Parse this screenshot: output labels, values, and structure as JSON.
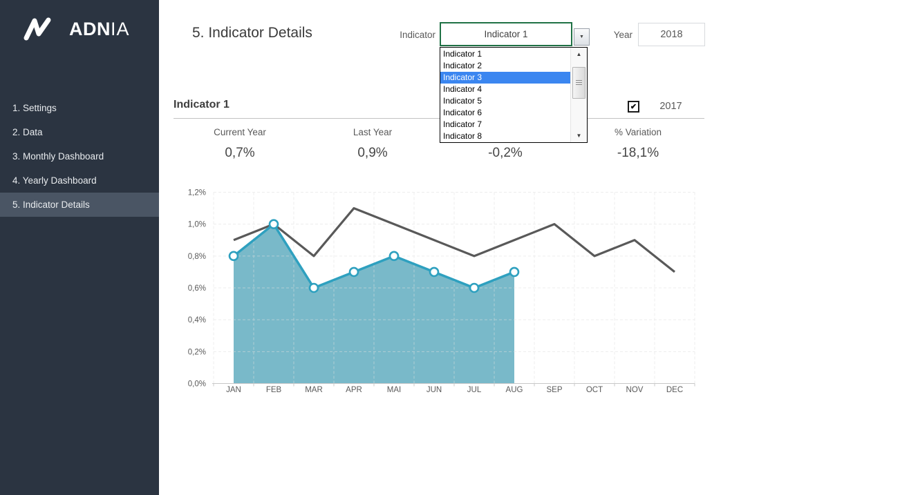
{
  "sidebar": {
    "logo": {
      "brand_bold": "ADN",
      "brand_light": "IA"
    },
    "items": [
      {
        "label": "1. Settings",
        "active": false
      },
      {
        "label": "2. Data",
        "active": false
      },
      {
        "label": "3. Monthly Dashboard",
        "active": false
      },
      {
        "label": "4. Yearly Dashboard",
        "active": false
      },
      {
        "label": "5. Indicator Details",
        "active": true
      }
    ],
    "colors": {
      "background": "#2b3441",
      "active_item": "#4a5564",
      "text": "#e9ecef"
    }
  },
  "header": {
    "title": "5. Indicator Details",
    "indicator_label": "Indicator",
    "indicator_value": "Indicator 1",
    "year_label": "Year",
    "year_value": "2018"
  },
  "dropdown": {
    "options": [
      "Indicator 1",
      "Indicator 2",
      "Indicator 3",
      "Indicator 4",
      "Indicator 5",
      "Indicator 6",
      "Indicator 7",
      "Indicator 8"
    ],
    "highlighted_index": 2,
    "highlight_color": "#3b86f0"
  },
  "section": {
    "title": "Indicator 1",
    "compare_checkbox_checked": true,
    "compare_year": "2017"
  },
  "stats": [
    {
      "label": "Current Year",
      "value": "0,7%"
    },
    {
      "label": "Last Year",
      "value": "0,9%"
    },
    {
      "label": "",
      "value": "-0,2%"
    },
    {
      "label": "% Variation",
      "value": "-18,1%"
    }
  ],
  "chart_data": {
    "type": "area",
    "categories": [
      "JAN",
      "FEB",
      "MAR",
      "APR",
      "MAI",
      "JUN",
      "JUL",
      "AUG",
      "SEP",
      "OCT",
      "NOV",
      "DEC"
    ],
    "series": [
      {
        "name": "Current Year",
        "type": "area",
        "values": [
          0.8,
          1.0,
          0.6,
          0.7,
          0.8,
          0.7,
          0.6,
          0.7
        ],
        "fill_color": "#79b9c9",
        "line_color": "#2ea0bf",
        "markers": true
      },
      {
        "name": "Last Year",
        "type": "line",
        "values": [
          0.9,
          1.0,
          0.8,
          1.1,
          1.0,
          0.9,
          0.8,
          0.9,
          1.0,
          0.8,
          0.9,
          0.7
        ],
        "line_color": "#595959",
        "markers": false
      }
    ],
    "title": "",
    "xlabel": "",
    "ylabel": "",
    "ylim": [
      0,
      1.2
    ],
    "ytick_step": 0.2,
    "ytick_labels": [
      "0,0%",
      "0,2%",
      "0,4%",
      "0,6%",
      "0,8%",
      "1,0%",
      "1,2%"
    ],
    "grid": true,
    "grid_color": "#e0e0e0",
    "axis_color": "#c8c8c8",
    "legend_position": "none"
  },
  "icons": {
    "combo_arrow_icon": "▼",
    "scroll_up_icon": "▲",
    "scroll_down_icon": "▼",
    "checkbox_check_icon": "✔"
  },
  "colors": {
    "accent_green": "#1f7145",
    "selection_blue": "#3b86f0",
    "area_fill": "#79b9c9",
    "area_line": "#2ea0bf",
    "last_year_line": "#595959",
    "text_dark": "#3f3f3f",
    "text_mid": "#595959"
  }
}
